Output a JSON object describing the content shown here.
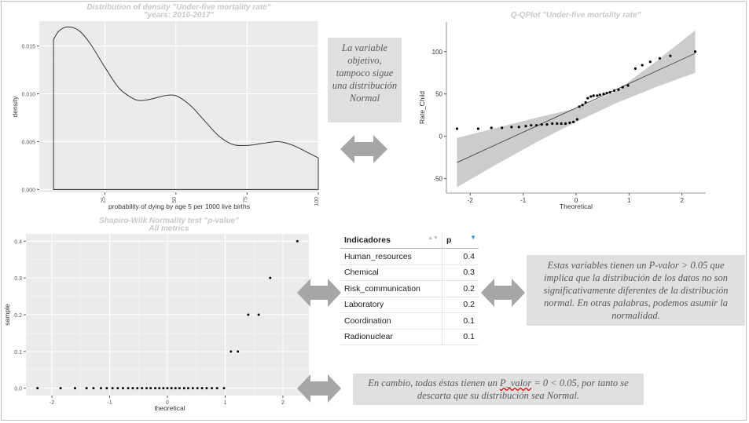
{
  "colors": {
    "panel_bg": "#ebebeb",
    "grid": "#ffffff",
    "note_bg": "#e0e0e0",
    "arrow": "#a6a6a6",
    "band": "#cccccc",
    "title": "#c8c8c8"
  },
  "density": {
    "title_line1": "Distribution of density \"Under-five mortality rate\"",
    "title_line2": "\"years: 2010-2017\"",
    "xlabel": "probability of dying by age 5 per 1000 live births",
    "ylabel": "density"
  },
  "qq": {
    "title": "Q-QPlot \"Under-five mortality rate\"",
    "xlabel": "Theoretical",
    "ylabel": "Rate_Child"
  },
  "sw": {
    "title_line1": "Shapiro-Wilk Normality test \"p-value\"",
    "title_line2": "All metrics",
    "xlabel": "theoretical",
    "ylabel": "sample"
  },
  "notes": {
    "note1": "La variable objetivo, tampoco sigue una distribución Normal",
    "note2": "Estas variables tienen un P-valor > 0.05 que implica que la distribución de los datos no son significativamente diferentes de la distribución normal. En otras palabras, podemos asumir la normalidad.",
    "note3_a": "En cambio, todas éstas tienen un",
    "note3_u": "P_valor",
    "note3_b": "= 0 < 0.05, por tanto se descarta que su distribución sea Normal."
  },
  "table": {
    "headers": [
      "Indicadores",
      "p"
    ],
    "rows": [
      [
        "Human_resources",
        "0.4"
      ],
      [
        "Chemical",
        "0.3"
      ],
      [
        "Risk_communication",
        "0.2"
      ],
      [
        "Laboratory",
        "0.2"
      ],
      [
        "Coordination",
        "0.1"
      ],
      [
        "Radionuclear",
        "0.1"
      ]
    ]
  },
  "chart_data": [
    {
      "type": "line",
      "title": "Distribution of density \"Under-five mortality rate\" \"years: 2010-2017\"",
      "xlabel": "probability of dying by age 5 per 1000 live births",
      "ylabel": "density",
      "xlim": [
        2,
        100
      ],
      "ylim": [
        -0.0003,
        0.0176
      ],
      "x_ticks": [
        25,
        50,
        75,
        100
      ],
      "x_tick_labels": [
        "25",
        "50",
        "75",
        "100"
      ],
      "y_ticks": [
        0,
        0.005,
        0.01,
        0.015
      ],
      "y_tick_labels": [
        "0.000",
        "0.005",
        "0.010",
        "0.015"
      ],
      "grid": true,
      "x": [
        7,
        7.2,
        9,
        12,
        16,
        20,
        25,
        30,
        35,
        38,
        42,
        46,
        50,
        55,
        60,
        65,
        70,
        75,
        80,
        85,
        88,
        92,
        96,
        100
      ],
      "y": [
        0.0156,
        0.0158,
        0.0166,
        0.017,
        0.0166,
        0.0152,
        0.0128,
        0.0106,
        0.0095,
        0.0093,
        0.0095,
        0.0098,
        0.0098,
        0.0088,
        0.0072,
        0.0056,
        0.0047,
        0.0046,
        0.0048,
        0.005,
        0.0049,
        0.0045,
        0.0039,
        0.0033
      ]
    },
    {
      "type": "scatter",
      "title": "Q-QPlot \"Under-five mortality rate\"",
      "xlabel": "Theoretical",
      "ylabel": "Rate_Child",
      "xlim": [
        -2.45,
        2.45
      ],
      "ylim": [
        -67,
        135
      ],
      "x_ticks": [
        -2,
        -1,
        0,
        1,
        2
      ],
      "x_tick_labels": [
        "-2",
        "-1",
        "0",
        "1",
        "2"
      ],
      "y_ticks": [
        -50,
        0,
        50,
        100
      ],
      "y_tick_labels": [
        "-50",
        "0",
        "50",
        "100"
      ],
      "grid": false,
      "points": [
        [
          -2.25,
          9
        ],
        [
          -1.85,
          9
        ],
        [
          -1.6,
          10
        ],
        [
          -1.4,
          10
        ],
        [
          -1.22,
          11
        ],
        [
          -1.08,
          11
        ],
        [
          -0.95,
          12
        ],
        [
          -0.85,
          13
        ],
        [
          -0.75,
          13
        ],
        [
          -0.65,
          14
        ],
        [
          -0.55,
          14
        ],
        [
          -0.45,
          15
        ],
        [
          -0.36,
          15
        ],
        [
          -0.28,
          15
        ],
        [
          -0.2,
          15
        ],
        [
          -0.12,
          16
        ],
        [
          -0.05,
          17
        ],
        [
          0.02,
          20
        ],
        [
          0.06,
          35
        ],
        [
          0.12,
          37
        ],
        [
          0.18,
          40
        ],
        [
          0.22,
          45
        ],
        [
          0.28,
          47
        ],
        [
          0.33,
          48
        ],
        [
          0.4,
          48
        ],
        [
          0.45,
          49
        ],
        [
          0.52,
          50
        ],
        [
          0.58,
          51
        ],
        [
          0.64,
          52
        ],
        [
          0.72,
          54
        ],
        [
          0.8,
          55
        ],
        [
          0.88,
          58
        ],
        [
          0.98,
          60
        ],
        [
          1.12,
          80
        ],
        [
          1.25,
          84
        ],
        [
          1.4,
          88
        ],
        [
          1.58,
          92
        ],
        [
          1.78,
          95
        ],
        [
          2.25,
          100
        ]
      ],
      "fit_line": {
        "from": [
          -2.25,
          -31
        ],
        "to": [
          2.25,
          98
        ]
      },
      "confidence_band": {
        "x": [
          -2.25,
          -1.5,
          -0.75,
          0,
          0.75,
          1.5,
          2.25
        ],
        "lower": [
          -60,
          -33,
          -7,
          17,
          39,
          58,
          75
        ],
        "upper": [
          -2,
          10,
          22,
          33,
          53,
          88,
          125
        ]
      }
    },
    {
      "type": "scatter",
      "title": "Shapiro-Wilk Normality test \"p-value\" All metrics",
      "xlabel": "theoretical",
      "ylabel": "sample",
      "xlim": [
        -2.45,
        2.45
      ],
      "ylim": [
        -0.02,
        0.42
      ],
      "x_ticks": [
        -2,
        -1,
        0,
        1,
        2
      ],
      "x_tick_labels": [
        "-2",
        "-1",
        "0",
        "1",
        "2"
      ],
      "y_ticks": [
        0,
        0.1,
        0.2,
        0.3,
        0.4
      ],
      "y_tick_labels": [
        "0.0",
        "0.1",
        "0.2",
        "0.3",
        "0.4"
      ],
      "grid": true,
      "points": [
        [
          -2.25,
          0
        ],
        [
          -1.85,
          0
        ],
        [
          -1.6,
          0
        ],
        [
          -1.4,
          0
        ],
        [
          -1.28,
          0
        ],
        [
          -1.15,
          0
        ],
        [
          -1.05,
          0
        ],
        [
          -0.95,
          0
        ],
        [
          -0.86,
          0
        ],
        [
          -0.77,
          0
        ],
        [
          -0.68,
          0
        ],
        [
          -0.6,
          0
        ],
        [
          -0.52,
          0
        ],
        [
          -0.44,
          0
        ],
        [
          -0.36,
          0
        ],
        [
          -0.29,
          0
        ],
        [
          -0.21,
          0
        ],
        [
          -0.14,
          0
        ],
        [
          -0.07,
          0
        ],
        [
          0,
          0
        ],
        [
          0.07,
          0
        ],
        [
          0.14,
          0
        ],
        [
          0.21,
          0
        ],
        [
          0.29,
          0
        ],
        [
          0.36,
          0
        ],
        [
          0.44,
          0
        ],
        [
          0.52,
          0
        ],
        [
          0.6,
          0
        ],
        [
          0.68,
          0
        ],
        [
          0.77,
          0
        ],
        [
          0.86,
          0
        ],
        [
          0.98,
          0
        ],
        [
          1.1,
          0.1
        ],
        [
          1.22,
          0.1
        ],
        [
          1.4,
          0.2
        ],
        [
          1.58,
          0.2
        ],
        [
          1.78,
          0.3
        ],
        [
          2.25,
          0.4
        ]
      ]
    }
  ]
}
